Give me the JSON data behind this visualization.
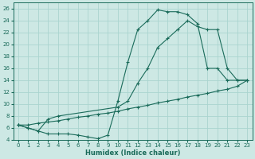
{
  "xlabel": "Humidex (Indice chaleur)",
  "bg_color": "#cde8e4",
  "line_color": "#1a6b5a",
  "grid_color": "#aad4cf",
  "xlim": [
    -0.5,
    23.5
  ],
  "ylim": [
    4,
    27
  ],
  "xticks": [
    0,
    1,
    2,
    3,
    4,
    5,
    6,
    7,
    8,
    9,
    10,
    11,
    12,
    13,
    14,
    15,
    16,
    17,
    18,
    19,
    20,
    21,
    22,
    23
  ],
  "yticks": [
    4,
    6,
    8,
    10,
    12,
    14,
    16,
    18,
    20,
    22,
    24,
    26
  ],
  "curve1_x": [
    0,
    1,
    2,
    3,
    4,
    5,
    6,
    7,
    8,
    9,
    10,
    11,
    12,
    13,
    14,
    15,
    16,
    17,
    18,
    19,
    20,
    21,
    22,
    23
  ],
  "curve1_y": [
    6.5,
    6.0,
    5.5,
    5.0,
    5.0,
    5.0,
    4.8,
    4.5,
    4.2,
    4.8,
    10.5,
    17.0,
    22.5,
    24.0,
    25.8,
    25.5,
    25.5,
    25.0,
    23.5,
    16.0,
    16.0,
    14.0,
    14.0,
    14.0
  ],
  "curve2_x": [
    0,
    1,
    2,
    3,
    4,
    10,
    11,
    12,
    13,
    14,
    15,
    16,
    17,
    18,
    19,
    20,
    21,
    22,
    23
  ],
  "curve2_y": [
    6.5,
    6.0,
    5.5,
    7.5,
    8.0,
    9.5,
    10.5,
    13.5,
    16.0,
    19.5,
    21.0,
    22.5,
    24.0,
    23.0,
    22.5,
    22.5,
    16.0,
    14.0,
    14.0
  ],
  "curve3_x": [
    0,
    1,
    2,
    3,
    4,
    5,
    6,
    7,
    8,
    9,
    10,
    11,
    12,
    13,
    14,
    15,
    16,
    17,
    18,
    19,
    20,
    21,
    22,
    23
  ],
  "curve3_y": [
    6.5,
    6.5,
    6.8,
    7.0,
    7.2,
    7.5,
    7.8,
    8.0,
    8.3,
    8.5,
    8.8,
    9.2,
    9.5,
    9.8,
    10.2,
    10.5,
    10.8,
    11.2,
    11.5,
    11.8,
    12.2,
    12.5,
    13.0,
    14.0
  ]
}
